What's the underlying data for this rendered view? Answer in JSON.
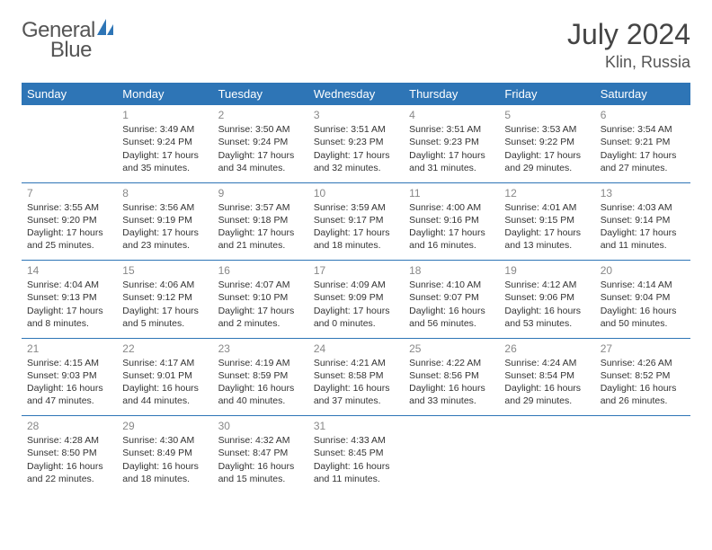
{
  "brand": {
    "word1": "General",
    "word2": "Blue",
    "word1_color": "#6a6a6a",
    "word2_color": "#2e75b6",
    "icon_color": "#2e75b6"
  },
  "header": {
    "month_title": "July 2024",
    "location": "Klin, Russia",
    "title_color": "#444444",
    "location_color": "#555555"
  },
  "style": {
    "header_bg": "#2e75b6",
    "header_fg": "#ffffff",
    "rule_color": "#2e75b6",
    "daynum_color": "#888888",
    "body_font_size": 10.5,
    "header_font_size": 13
  },
  "day_names": [
    "Sunday",
    "Monday",
    "Tuesday",
    "Wednesday",
    "Thursday",
    "Friday",
    "Saturday"
  ],
  "weeks": [
    [
      {
        "blank": true
      },
      {
        "n": "1",
        "sr": "3:49 AM",
        "ss": "9:24 PM",
        "dl": "17 hours and 35 minutes."
      },
      {
        "n": "2",
        "sr": "3:50 AM",
        "ss": "9:24 PM",
        "dl": "17 hours and 34 minutes."
      },
      {
        "n": "3",
        "sr": "3:51 AM",
        "ss": "9:23 PM",
        "dl": "17 hours and 32 minutes."
      },
      {
        "n": "4",
        "sr": "3:51 AM",
        "ss": "9:23 PM",
        "dl": "17 hours and 31 minutes."
      },
      {
        "n": "5",
        "sr": "3:53 AM",
        "ss": "9:22 PM",
        "dl": "17 hours and 29 minutes."
      },
      {
        "n": "6",
        "sr": "3:54 AM",
        "ss": "9:21 PM",
        "dl": "17 hours and 27 minutes."
      }
    ],
    [
      {
        "n": "7",
        "sr": "3:55 AM",
        "ss": "9:20 PM",
        "dl": "17 hours and 25 minutes."
      },
      {
        "n": "8",
        "sr": "3:56 AM",
        "ss": "9:19 PM",
        "dl": "17 hours and 23 minutes."
      },
      {
        "n": "9",
        "sr": "3:57 AM",
        "ss": "9:18 PM",
        "dl": "17 hours and 21 minutes."
      },
      {
        "n": "10",
        "sr": "3:59 AM",
        "ss": "9:17 PM",
        "dl": "17 hours and 18 minutes."
      },
      {
        "n": "11",
        "sr": "4:00 AM",
        "ss": "9:16 PM",
        "dl": "17 hours and 16 minutes."
      },
      {
        "n": "12",
        "sr": "4:01 AM",
        "ss": "9:15 PM",
        "dl": "17 hours and 13 minutes."
      },
      {
        "n": "13",
        "sr": "4:03 AM",
        "ss": "9:14 PM",
        "dl": "17 hours and 11 minutes."
      }
    ],
    [
      {
        "n": "14",
        "sr": "4:04 AM",
        "ss": "9:13 PM",
        "dl": "17 hours and 8 minutes."
      },
      {
        "n": "15",
        "sr": "4:06 AM",
        "ss": "9:12 PM",
        "dl": "17 hours and 5 minutes."
      },
      {
        "n": "16",
        "sr": "4:07 AM",
        "ss": "9:10 PM",
        "dl": "17 hours and 2 minutes."
      },
      {
        "n": "17",
        "sr": "4:09 AM",
        "ss": "9:09 PM",
        "dl": "17 hours and 0 minutes."
      },
      {
        "n": "18",
        "sr": "4:10 AM",
        "ss": "9:07 PM",
        "dl": "16 hours and 56 minutes."
      },
      {
        "n": "19",
        "sr": "4:12 AM",
        "ss": "9:06 PM",
        "dl": "16 hours and 53 minutes."
      },
      {
        "n": "20",
        "sr": "4:14 AM",
        "ss": "9:04 PM",
        "dl": "16 hours and 50 minutes."
      }
    ],
    [
      {
        "n": "21",
        "sr": "4:15 AM",
        "ss": "9:03 PM",
        "dl": "16 hours and 47 minutes."
      },
      {
        "n": "22",
        "sr": "4:17 AM",
        "ss": "9:01 PM",
        "dl": "16 hours and 44 minutes."
      },
      {
        "n": "23",
        "sr": "4:19 AM",
        "ss": "8:59 PM",
        "dl": "16 hours and 40 minutes."
      },
      {
        "n": "24",
        "sr": "4:21 AM",
        "ss": "8:58 PM",
        "dl": "16 hours and 37 minutes."
      },
      {
        "n": "25",
        "sr": "4:22 AM",
        "ss": "8:56 PM",
        "dl": "16 hours and 33 minutes."
      },
      {
        "n": "26",
        "sr": "4:24 AM",
        "ss": "8:54 PM",
        "dl": "16 hours and 29 minutes."
      },
      {
        "n": "27",
        "sr": "4:26 AM",
        "ss": "8:52 PM",
        "dl": "16 hours and 26 minutes."
      }
    ],
    [
      {
        "n": "28",
        "sr": "4:28 AM",
        "ss": "8:50 PM",
        "dl": "16 hours and 22 minutes."
      },
      {
        "n": "29",
        "sr": "4:30 AM",
        "ss": "8:49 PM",
        "dl": "16 hours and 18 minutes."
      },
      {
        "n": "30",
        "sr": "4:32 AM",
        "ss": "8:47 PM",
        "dl": "16 hours and 15 minutes."
      },
      {
        "n": "31",
        "sr": "4:33 AM",
        "ss": "8:45 PM",
        "dl": "16 hours and 11 minutes."
      },
      {
        "blank": true
      },
      {
        "blank": true
      },
      {
        "blank": true
      }
    ]
  ],
  "labels": {
    "sunrise_prefix": "Sunrise: ",
    "sunset_prefix": "Sunset: ",
    "daylight_prefix": "Daylight: "
  }
}
